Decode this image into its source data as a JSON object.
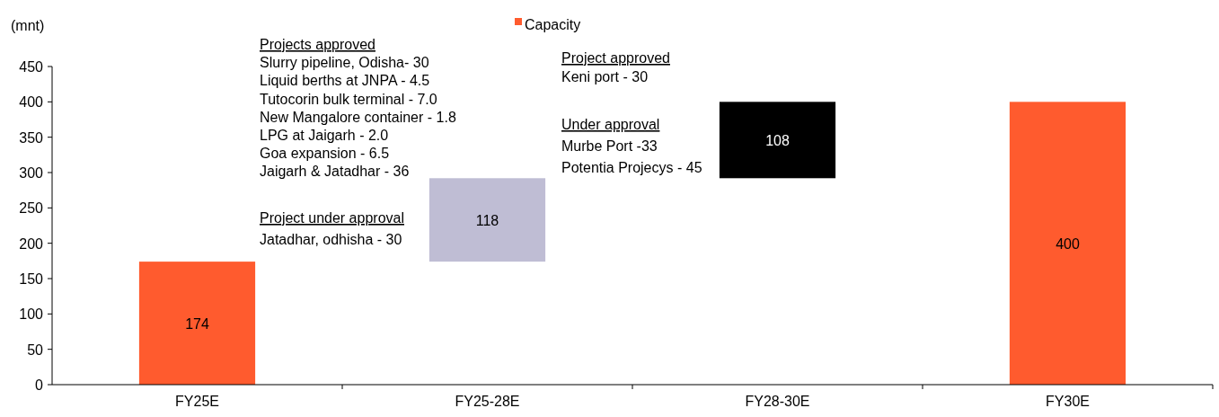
{
  "chart_data": {
    "type": "bar",
    "ylabel": "(mnt)",
    "categories": [
      "FY25E",
      "FY25-28E",
      "FY28-30E",
      "FY30E"
    ],
    "series": [
      {
        "name": "Capacity",
        "color": "#ff5b2e",
        "values": [
          174,
          118,
          108,
          400
        ],
        "colors": [
          "#ff5b2e",
          "#bfbdd4",
          "#000000",
          "#ff5b2e"
        ],
        "base": [
          0,
          174,
          292,
          0
        ]
      }
    ],
    "ylim": [
      0,
      450
    ],
    "yticks": [
      0,
      50,
      100,
      150,
      200,
      250,
      300,
      350,
      400,
      450
    ],
    "grid": false,
    "legend": "top",
    "data_labels": true,
    "annotations": [
      "Projects approved",
      "Slurry pipeline, Odisha- 30",
      "Liquid berths at JNPA - 4.5",
      "Tutocorin bulk terminal - 7.0",
      "New Mangalore container - 1.8",
      "LPG at Jaigarh - 2.0",
      "Goa expansion - 6.5",
      "Jaigarh & Jatadhar - 36",
      "Project under approval",
      "Jatadhar, odhisha - 30",
      "Project approved",
      "Keni port - 30",
      "Under approval",
      "Murbe Port -33",
      "Potentia Projecys - 45"
    ]
  }
}
